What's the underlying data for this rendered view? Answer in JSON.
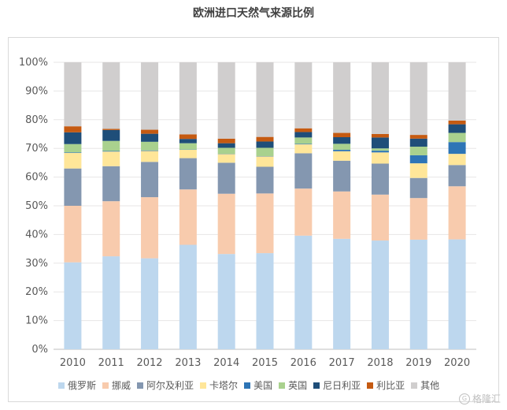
{
  "chart_data": {
    "type": "bar",
    "stacked": true,
    "title": "欧洲进口天然气来源比例",
    "xlabel": "",
    "ylabel": "",
    "ylim": [
      0,
      100
    ],
    "y_ticks": [
      "0%",
      "10%",
      "20%",
      "30%",
      "40%",
      "50%",
      "60%",
      "70%",
      "80%",
      "90%",
      "100%"
    ],
    "categories": [
      "2010",
      "2011",
      "2012",
      "2013",
      "2014",
      "2015",
      "2016",
      "2017",
      "2018",
      "2019",
      "2020"
    ],
    "legend_position": "bottom",
    "grid": true,
    "series": [
      {
        "name": "俄罗斯",
        "color": "#bdd7ee",
        "values": [
          30.3,
          32.4,
          31.7,
          36.4,
          33.2,
          33.5,
          39.6,
          38.5,
          37.9,
          38.2,
          38.3
        ]
      },
      {
        "name": "挪威",
        "color": "#f8cbad",
        "values": [
          19.7,
          19.2,
          21.3,
          19.3,
          21.0,
          20.8,
          16.4,
          16.5,
          16.0,
          14.5,
          18.5
        ]
      },
      {
        "name": "阿尔及利亚",
        "color": "#8497b0",
        "values": [
          13.0,
          12.2,
          12.3,
          10.9,
          10.8,
          9.3,
          12.3,
          10.7,
          10.8,
          7.0,
          7.4
        ]
      },
      {
        "name": "卡塔尔",
        "color": "#ffe699",
        "values": [
          5.4,
          5.1,
          3.8,
          2.9,
          3.0,
          3.6,
          3.1,
          3.3,
          3.9,
          5.1,
          3.9
        ]
      },
      {
        "name": "美国",
        "color": "#2e75b6",
        "values": [
          0.2,
          0.2,
          0.2,
          0.1,
          0.1,
          0.1,
          0.2,
          0.5,
          0.6,
          2.8,
          4.1
        ]
      },
      {
        "name": "英国",
        "color": "#a9d18e",
        "values": [
          2.9,
          3.5,
          3.0,
          2.2,
          2.1,
          2.9,
          2.2,
          2.1,
          0.8,
          3.0,
          3.2
        ]
      },
      {
        "name": "尼日利亚",
        "color": "#1f4e79",
        "values": [
          4.1,
          3.8,
          2.8,
          1.5,
          1.6,
          2.2,
          1.9,
          2.3,
          3.8,
          2.8,
          3.0
        ]
      },
      {
        "name": "利比亚",
        "color": "#c55a11",
        "values": [
          2.1,
          0.4,
          1.4,
          1.6,
          1.6,
          1.6,
          1.3,
          1.5,
          1.2,
          1.3,
          1.3
        ]
      },
      {
        "name": "其他",
        "color": "#d0cece",
        "values": [
          22.3,
          23.2,
          23.5,
          25.1,
          26.6,
          26.0,
          23.0,
          24.6,
          25.0,
          25.3,
          20.3
        ]
      }
    ]
  },
  "watermark": {
    "text": "格隆汇",
    "icon": "G"
  }
}
